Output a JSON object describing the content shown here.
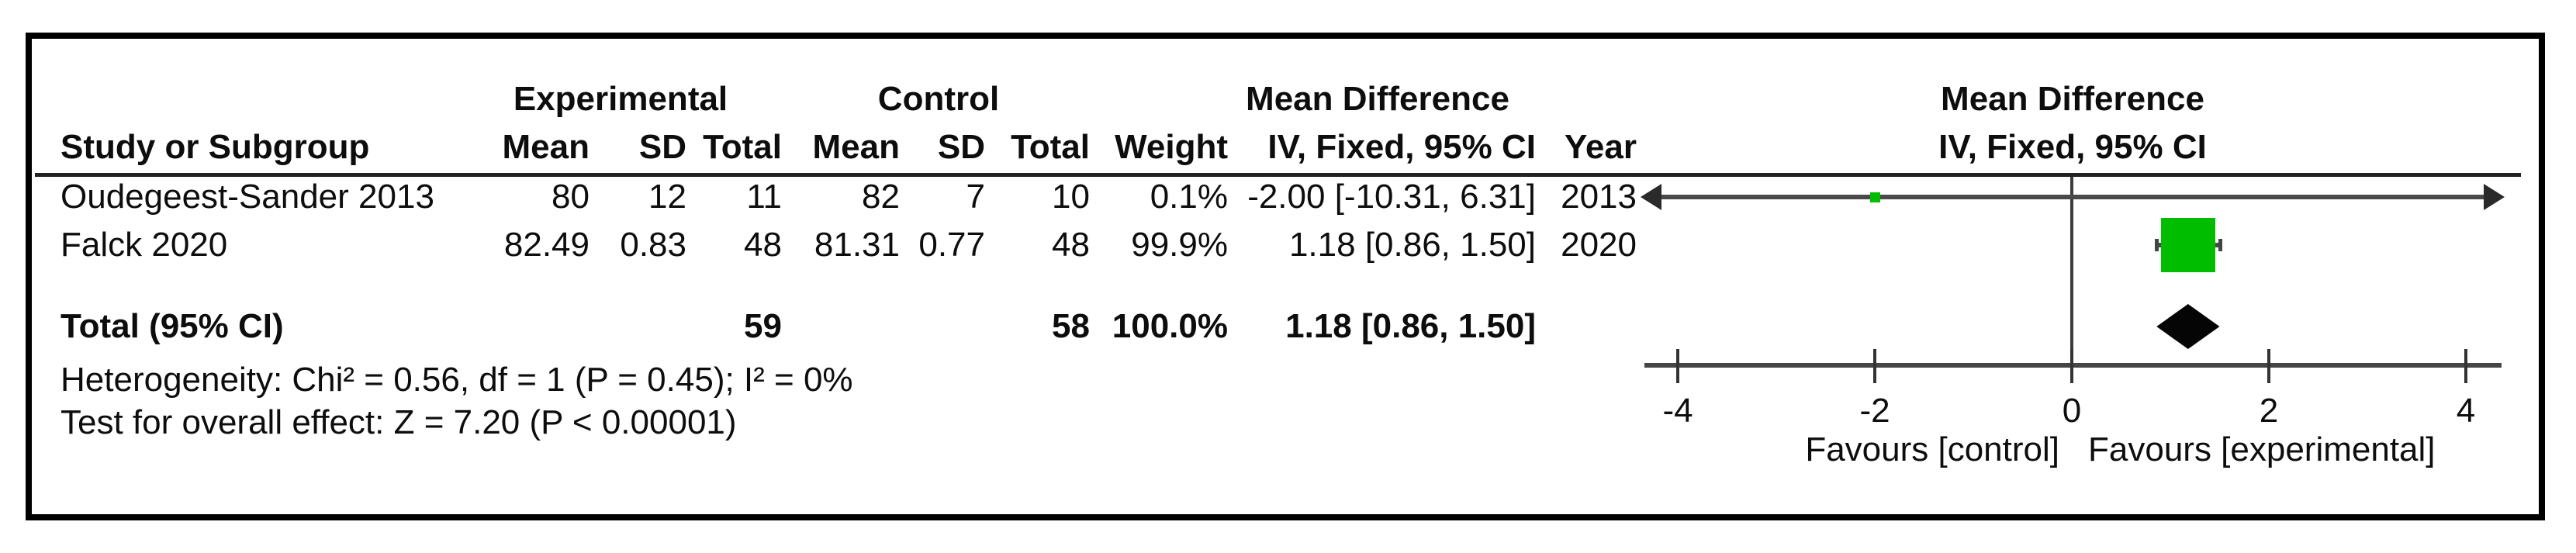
{
  "table": {
    "group_headers": {
      "experimental": "Experimental",
      "control": "Control",
      "mean_difference": "Mean Difference"
    },
    "columns": {
      "study": "Study or Subgroup",
      "mean": "Mean",
      "sd": "SD",
      "total": "Total",
      "weight": "Weight",
      "iv_ci": "IV, Fixed, 95% CI",
      "year": "Year"
    },
    "rows": [
      {
        "study": "Oudegeest-Sander 2013",
        "mean_e": "80",
        "sd_e": "12",
        "total_e": "11",
        "mean_c": "82",
        "sd_c": "7",
        "total_c": "10",
        "weight": "0.1%",
        "ci": "-2.00 [-10.31, 6.31]",
        "year": "2013"
      },
      {
        "study": "Falck 2020",
        "mean_e": "82.49",
        "sd_e": "0.83",
        "total_e": "48",
        "mean_c": "81.31",
        "sd_c": "0.77",
        "total_c": "48",
        "weight": "99.9%",
        "ci": "1.18 [0.86, 1.50]",
        "year": "2020"
      }
    ],
    "total_row": {
      "label": "Total (95% CI)",
      "total_e": "59",
      "total_c": "58",
      "weight": "100.0%",
      "ci": "1.18 [0.86, 1.50]"
    },
    "heterogeneity": "Heterogeneity: Chi² = 0.56, df = 1 (P = 0.45); I² = 0%",
    "overall_effect": "Test for overall effect: Z = 7.20 (P < 0.00001)"
  },
  "plot": {
    "header_line1": "Mean Difference",
    "header_line2": "IV, Fixed, 95% CI",
    "favours_left": "Favours [control]",
    "favours_right": "Favours [experimental]",
    "marker_color": "#00BD00",
    "diamond_color": "#050505",
    "line_color": "#4a4a4a"
  },
  "chart_data": {
    "type": "forest",
    "effect_measure": "Mean Difference",
    "method": "IV, Fixed, 95% CI",
    "xlim": [
      -4,
      4
    ],
    "x_ticks": [
      -4,
      -2,
      0,
      2,
      4
    ],
    "x_axis_left_label": "Favours [control]",
    "x_axis_right_label": "Favours [experimental]",
    "studies": [
      {
        "name": "Oudegeest-Sander 2013",
        "year": 2013,
        "experimental": {
          "mean": 80,
          "sd": 12,
          "total": 11
        },
        "control": {
          "mean": 82,
          "sd": 7,
          "total": 10
        },
        "weight_pct": 0.1,
        "md": -2.0,
        "ci_low": -10.31,
        "ci_high": 6.31
      },
      {
        "name": "Falck 2020",
        "year": 2020,
        "experimental": {
          "mean": 82.49,
          "sd": 0.83,
          "total": 48
        },
        "control": {
          "mean": 81.31,
          "sd": 0.77,
          "total": 48
        },
        "weight_pct": 99.9,
        "md": 1.18,
        "ci_low": 0.86,
        "ci_high": 1.5
      }
    ],
    "total": {
      "label": "Total (95% CI)",
      "total_experimental": 59,
      "total_control": 58,
      "weight_pct": 100.0,
      "md": 1.18,
      "ci_low": 0.86,
      "ci_high": 1.5
    },
    "heterogeneity": {
      "chi2": 0.56,
      "df": 1,
      "p": 0.45,
      "i2_pct": 0
    },
    "overall_effect": {
      "z": 7.2,
      "p_text": "P < 0.00001"
    }
  }
}
